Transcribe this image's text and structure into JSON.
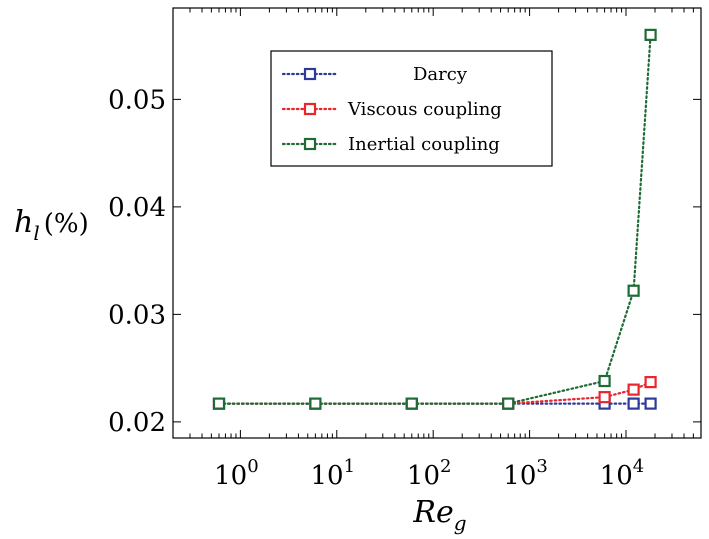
{
  "chart_data": {
    "type": "line",
    "title": "",
    "xlabel": "Re",
    "xlabel_sub": "g",
    "ylabel": "h",
    "ylabel_sub": "l",
    "ylabel_unit": "(%)",
    "xscale": "log",
    "xlim": [
      0.2,
      60000
    ],
    "ylim": [
      0.0185,
      0.0585
    ],
    "x_ticks": [
      {
        "value": 1,
        "base": "10",
        "exp": "0"
      },
      {
        "value": 10,
        "base": "10",
        "exp": "1"
      },
      {
        "value": 100,
        "base": "10",
        "exp": "2"
      },
      {
        "value": 1000,
        "base": "10",
        "exp": "3"
      },
      {
        "value": 10000,
        "base": "10",
        "exp": "4"
      }
    ],
    "y_ticks": [
      {
        "value": 0.02,
        "label": "0.02"
      },
      {
        "value": 0.03,
        "label": "0.03"
      },
      {
        "value": 0.04,
        "label": "0.04"
      },
      {
        "value": 0.05,
        "label": "0.05"
      }
    ],
    "grid": false,
    "legend_position": "top-right",
    "series": [
      {
        "name": "Darcy",
        "color": "#2e3a9a",
        "marker": "square-open",
        "line": "dotted",
        "x": [
          0.6,
          6,
          60,
          600,
          6000,
          12000,
          18000
        ],
        "y": [
          0.0217,
          0.0217,
          0.0217,
          0.0217,
          0.0217,
          0.0217,
          0.0217
        ]
      },
      {
        "name": "Viscous coupling",
        "color": "#e8262b",
        "marker": "square-open",
        "line": "dotted",
        "x": [
          0.6,
          6,
          60,
          600,
          6000,
          12000,
          18000
        ],
        "y": [
          0.0217,
          0.0217,
          0.0217,
          0.0217,
          0.0223,
          0.023,
          0.0237
        ]
      },
      {
        "name": "Inertial coupling",
        "color": "#1e6b35",
        "marker": "square-open",
        "line": "dotted",
        "x": [
          0.6,
          6,
          60,
          600,
          6000,
          12000,
          18000
        ],
        "y": [
          0.0217,
          0.0217,
          0.0217,
          0.0217,
          0.0238,
          0.0322,
          0.056
        ]
      }
    ]
  }
}
